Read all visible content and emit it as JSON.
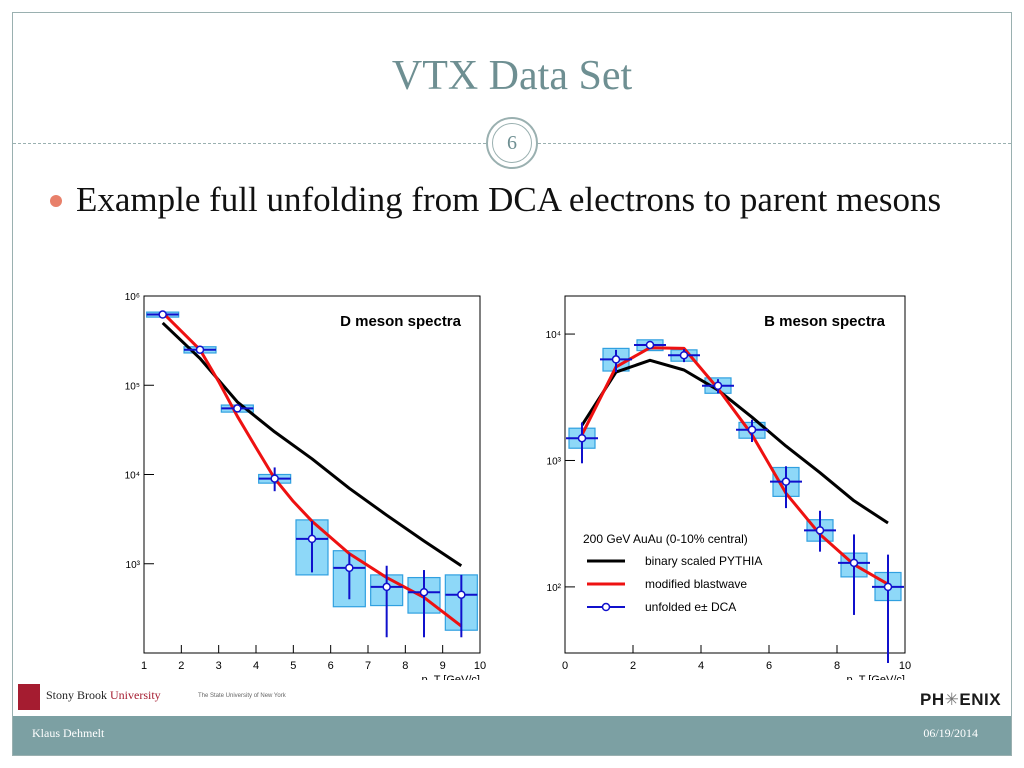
{
  "slide": {
    "title": "VTX Data Set",
    "number": "6",
    "bullet": "Example full unfolding from DCA electrons to parent mesons",
    "author": "Klaus Dehmelt",
    "date": "06/19/2014",
    "logo_left": {
      "name": "Stony Brook",
      "name2": "University",
      "tagline": "The State University of New York"
    },
    "logo_right": {
      "left": "PH",
      "right": "ENIX"
    }
  },
  "colors": {
    "title": "#6e8f92",
    "bullet": "#e8806a",
    "footer": "#7ca0a3",
    "data": "#1010cc",
    "box": "#8ed8f8",
    "pythia": "#000000",
    "blastwave": "#ee1111"
  },
  "chart_data": [
    {
      "type": "scatter",
      "title": "D meson spectra",
      "xlabel": "p_T [GeV/c]",
      "xlim": [
        1,
        10
      ],
      "ylim": [
        100,
        1000000
      ],
      "yscale": "log",
      "xticks": [
        1,
        2,
        3,
        4,
        5,
        6,
        7,
        8,
        9,
        10
      ],
      "yticks": [
        {
          "v": 1000,
          "label": "10³"
        },
        {
          "v": 10000,
          "label": "10⁴"
        },
        {
          "v": 100000,
          "label": "10⁵"
        },
        {
          "v": 1000000,
          "label": "10⁶"
        }
      ],
      "series": [
        {
          "name": "binary scaled PYTHIA",
          "kind": "line",
          "color": "#000000",
          "x": [
            1.5,
            2.5,
            3.5,
            4.5,
            5.5,
            6.5,
            7.5,
            8.5,
            9.5
          ],
          "y": [
            500000,
            200000,
            65000,
            30000,
            15000,
            7000,
            3500,
            1800,
            950
          ]
        },
        {
          "name": "modified blastwave",
          "kind": "line",
          "color": "#ee1111",
          "x": [
            1.5,
            2.5,
            3.0,
            3.5,
            4.0,
            4.5,
            5.0,
            5.5,
            6.5,
            7.5,
            8.5,
            9.5
          ],
          "y": [
            650000,
            250000,
            110000,
            45000,
            20000,
            9000,
            5000,
            3000,
            1300,
            700,
            420,
            200
          ]
        },
        {
          "name": "unfolded e± DCA",
          "kind": "points",
          "color": "#1010cc",
          "x": [
            1.5,
            2.5,
            3.5,
            4.5,
            5.5,
            6.5,
            7.5,
            8.5,
            9.5
          ],
          "y": [
            620000,
            250000,
            55000,
            9000,
            1900,
            900,
            550,
            480,
            450
          ],
          "ylo": [
            600000,
            235000,
            52000,
            6500,
            800,
            400,
            150,
            150,
            150
          ],
          "yhi": [
            640000,
            265000,
            58000,
            12000,
            3000,
            1300,
            950,
            850,
            750
          ],
          "syslo": [
            580000,
            230000,
            50000,
            8000,
            750,
            330,
            340,
            280,
            180
          ],
          "syshi": [
            660000,
            270000,
            60000,
            10000,
            3100,
            1400,
            750,
            700,
            750
          ]
        }
      ]
    },
    {
      "type": "scatter",
      "title": "B meson spectra",
      "xlabel": "p_T [GeV/c]",
      "xlim": [
        0,
        10
      ],
      "ylim": [
        30,
        20000
      ],
      "yscale": "log",
      "xticks": [
        0,
        2,
        4,
        6,
        8,
        10
      ],
      "yticks": [
        {
          "v": 100,
          "label": "10²"
        },
        {
          "v": 1000,
          "label": "10³"
        },
        {
          "v": 10000,
          "label": "10⁴"
        }
      ],
      "legend": {
        "header": "200 GeV AuAu (0-10% central)",
        "position": "bottom-left"
      },
      "series": [
        {
          "name": "binary scaled PYTHIA",
          "kind": "line",
          "color": "#000000",
          "x": [
            0.5,
            1.5,
            2.5,
            3.5,
            4.5,
            5.5,
            6.5,
            7.5,
            8.5,
            9.5
          ],
          "y": [
            1900,
            5000,
            6200,
            5200,
            3600,
            2200,
            1300,
            800,
            480,
            320
          ]
        },
        {
          "name": "modified blastwave",
          "kind": "line",
          "color": "#ee1111",
          "x": [
            0.5,
            1.5,
            2.5,
            3.5,
            4.5,
            5.5,
            6.5,
            7.5,
            8.5,
            9.5
          ],
          "y": [
            1600,
            5500,
            7800,
            7700,
            3700,
            1600,
            550,
            260,
            150,
            105
          ]
        },
        {
          "name": "unfolded e± DCA",
          "kind": "points",
          "color": "#1010cc",
          "x": [
            0.5,
            1.5,
            2.5,
            3.5,
            4.5,
            5.5,
            6.5,
            7.5,
            8.5,
            9.5
          ],
          "y": [
            1500,
            6300,
            8200,
            6800,
            3900,
            1750,
            680,
            280,
            155,
            100
          ],
          "ylo": [
            950,
            5000,
            7600,
            6000,
            3400,
            1400,
            420,
            190,
            60,
            25
          ],
          "yhi": [
            2000,
            7500,
            8800,
            7600,
            4400,
            2100,
            900,
            400,
            260,
            180
          ],
          "syslo": [
            1250,
            5100,
            7400,
            6100,
            3400,
            1500,
            520,
            230,
            120,
            78
          ],
          "syshi": [
            1800,
            7700,
            9000,
            7500,
            4500,
            2000,
            880,
            340,
            185,
            130
          ]
        }
      ]
    }
  ]
}
